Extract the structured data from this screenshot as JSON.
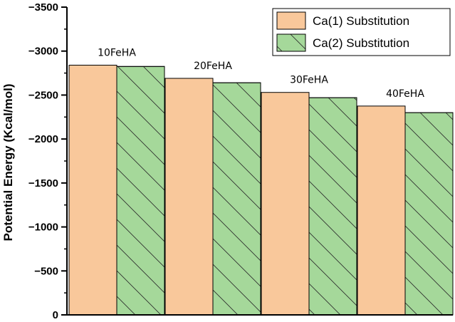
{
  "chart_data": {
    "type": "bar",
    "title": "",
    "xlabel": "",
    "ylabel": "Potential Energy (Kcal/mol)",
    "ylim": [
      0,
      -3500
    ],
    "y_axis_inverted": true,
    "y_ticks": [
      0,
      -500,
      -1000,
      -1500,
      -2000,
      -2500,
      -3000,
      -3500
    ],
    "y_tick_labels": [
      "0",
      "−500",
      "−1000",
      "−1500",
      "−2000",
      "−2500",
      "−3000",
      "−3500"
    ],
    "categories": [
      "10FeHA",
      "20FeHA",
      "30FeHA",
      "40FeHA"
    ],
    "series": [
      {
        "name": "Ca(1) Substitution",
        "values": [
          -2840,
          -2690,
          -2530,
          -2375
        ],
        "color": "#f9c89b",
        "pattern": "solid"
      },
      {
        "name": "Ca(2) Substitution",
        "values": [
          -2825,
          -2640,
          -2470,
          -2300
        ],
        "color": "#a5d89a",
        "pattern": "diagonal-hatch"
      }
    ],
    "legend_position": "top-right",
    "grid": false
  }
}
